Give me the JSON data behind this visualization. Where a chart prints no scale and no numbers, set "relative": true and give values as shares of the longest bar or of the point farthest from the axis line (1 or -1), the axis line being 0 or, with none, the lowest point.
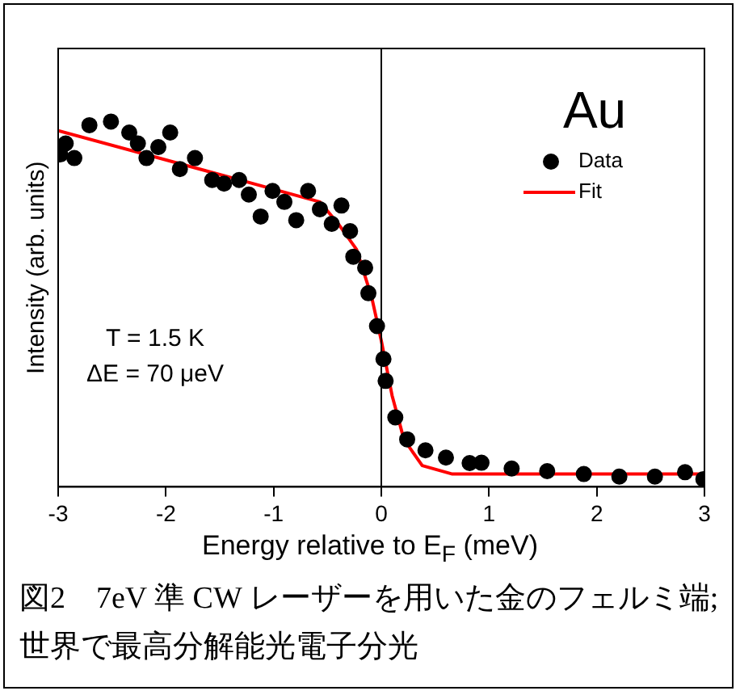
{
  "chart_data": {
    "type": "scatter",
    "xlabel": "Energy relative to E$_{F}$ (meV)",
    "ylabel": "Intensity (arb. units)",
    "legend_title": "Au",
    "relative": true,
    "xlim": [
      -3,
      3
    ],
    "xticks": [
      -3,
      -2,
      -1,
      0,
      1,
      2,
      3
    ],
    "grid": false,
    "legend": "top right",
    "tick_labels": "x",
    "series": [
      {
        "name": "Data",
        "type": "scatter",
        "color": "#000000",
        "marker": "circle",
        "x": [
          -2.98,
          -2.93,
          -2.85,
          -2.71,
          -2.51,
          -2.34,
          -2.26,
          -2.18,
          -2.07,
          -1.96,
          -1.87,
          -1.73,
          -1.57,
          -1.46,
          -1.32,
          -1.23,
          -1.12,
          -1.01,
          -0.9,
          -0.79,
          -0.68,
          -0.57,
          -0.46,
          -0.37,
          -0.29,
          -0.26,
          -0.15,
          -0.12,
          -0.04,
          0.02,
          0.04,
          0.13,
          0.24,
          0.41,
          0.6,
          0.82,
          0.93,
          1.21,
          1.54,
          1.88,
          2.21,
          2.54,
          2.82,
          2.99
        ],
        "values": [
          0.91,
          0.94,
          0.9,
          0.99,
          1,
          0.97,
          0.94,
          0.9,
          0.93,
          0.97,
          0.87,
          0.9,
          0.84,
          0.83,
          0.84,
          0.8,
          0.74,
          0.81,
          0.78,
          0.73,
          0.81,
          0.76,
          0.72,
          0.77,
          0.7,
          0.63,
          0.6,
          0.53,
          0.44,
          0.35,
          0.29,
          0.19,
          0.13,
          0.1,
          0.08,
          0.065,
          0.066,
          0.05,
          0.043,
          0.035,
          0.028,
          0.028,
          0.04,
          0.021
        ]
      },
      {
        "name": "Fit",
        "type": "line",
        "color": "#ff0000",
        "marker": "none",
        "line_style": "solid",
        "x": [
          -3,
          -1.5,
          -0.57,
          -0.4,
          -0.23,
          -0.09,
          0,
          0.1,
          0.21,
          0.38,
          0.66,
          3
        ],
        "values": [
          0.975,
          0.855,
          0.78,
          0.72,
          0.65,
          0.52,
          0.4,
          0.25,
          0.13,
          0.058,
          0.035,
          0.035
        ]
      }
    ],
    "ref_lines": [
      {
        "axis": "x",
        "value": 0,
        "color": "#000000"
      }
    ],
    "annotations": [
      "T = 1.5 K",
      "ΔE = 70 μeV",
      "図2　7eV 準 CW レーザーを用いた金のフェルミ端;世界で最高分解能光電子分光"
    ]
  }
}
